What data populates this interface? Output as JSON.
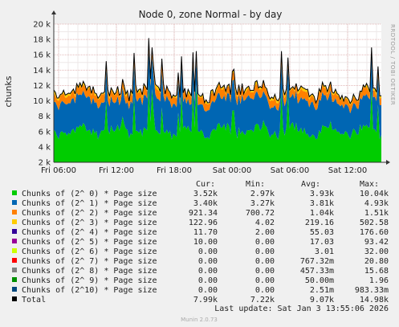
{
  "chart_data": {
    "type": "area",
    "title": "Node 0, zone Normal - by day",
    "ylabel": "chunks",
    "side_label": "RRDTOOL / TOBI OETIKER",
    "ylim": [
      2000,
      20000
    ],
    "y_ticks": [
      "2 k",
      "4 k",
      "6 k",
      "8 k",
      "10 k",
      "12 k",
      "14 k",
      "16 k",
      "18 k",
      "20 k"
    ],
    "y_tick_values": [
      2000,
      4000,
      6000,
      8000,
      10000,
      12000,
      14000,
      16000,
      18000,
      20000
    ],
    "x_ticks": [
      "Fri 06:00",
      "Fri 12:00",
      "Fri 18:00",
      "Sat 00:00",
      "Sat 06:00",
      "Sat 12:00"
    ],
    "x_tick_hours": [
      6,
      12,
      18,
      24,
      30,
      36
    ],
    "x_range_hours": [
      5.5,
      39.5
    ],
    "grid": true,
    "series": [
      {
        "name": "Chunks of (2^ 0) * Page size",
        "color": "#00cc00",
        "cur": "3.52k",
        "min": "2.97k",
        "avg": "3.93k",
        "max": "10.04k"
      },
      {
        "name": "Chunks of (2^ 1) * Page size",
        "color": "#0066b3",
        "cur": "3.40k",
        "min": "3.27k",
        "avg": "3.81k",
        "max": "4.93k"
      },
      {
        "name": "Chunks of (2^ 2) * Page size",
        "color": "#ff8000",
        "cur": "921.34",
        "min": "700.72",
        "avg": "1.04k",
        "max": "1.51k"
      },
      {
        "name": "Chunks of (2^ 3) * Page size",
        "color": "#ffcc00",
        "cur": "122.96",
        "min": "4.02",
        "avg": "219.16",
        "max": "502.58"
      },
      {
        "name": "Chunks of (2^ 4) * Page size",
        "color": "#330099",
        "cur": "11.70",
        "min": "2.00",
        "avg": "55.03",
        "max": "176.60"
      },
      {
        "name": "Chunks of (2^ 5) * Page size",
        "color": "#990099",
        "cur": "10.00",
        "min": "0.00",
        "avg": "17.03",
        "max": "93.42"
      },
      {
        "name": "Chunks of (2^ 6) * Page size",
        "color": "#ccff00",
        "cur": "0.00",
        "min": "0.00",
        "avg": "3.01",
        "max": "32.00"
      },
      {
        "name": "Chunks of (2^ 7) * Page size",
        "color": "#ff0000",
        "cur": "0.00",
        "min": "0.00",
        "avg": "767.32m",
        "max": "20.80"
      },
      {
        "name": "Chunks of (2^ 8) * Page size",
        "color": "#808080",
        "cur": "0.00",
        "min": "0.00",
        "avg": "457.33m",
        "max": "15.68"
      },
      {
        "name": "Chunks of (2^ 9) * Page size",
        "color": "#008f00",
        "cur": "0.00",
        "min": "0.00",
        "avg": "50.00m",
        "max": "1.96"
      },
      {
        "name": "Chunks of (2^10) * Page size",
        "color": "#00487d",
        "cur": "0.00",
        "min": "0.00",
        "avg": "2.51m",
        "max": "983.33m"
      },
      {
        "name": "Total",
        "color": "#000000",
        "cur": "7.99k",
        "min": "7.22k",
        "avg": "9.07k",
        "max": "14.98k"
      }
    ]
  },
  "legend_headers": {
    "cur": "Cur:",
    "min": "Min:",
    "avg": "Avg:",
    "max": "Max:"
  },
  "last_update": "Last update: Sat Jan  3 13:55:06 2026",
  "footer": "Munin 2.0.73"
}
